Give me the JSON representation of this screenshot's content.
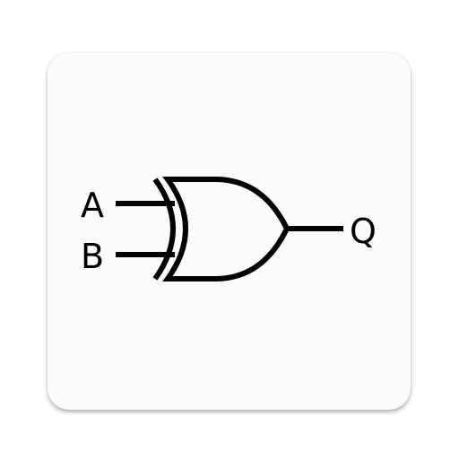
{
  "icon": {
    "name": "xor-gate-icon",
    "background_color": "#fcfcfc",
    "stroke_color": "#000000"
  },
  "diagram": {
    "inputs": [
      {
        "label": "A"
      },
      {
        "label": "B"
      }
    ],
    "output": {
      "label": "Q"
    }
  }
}
